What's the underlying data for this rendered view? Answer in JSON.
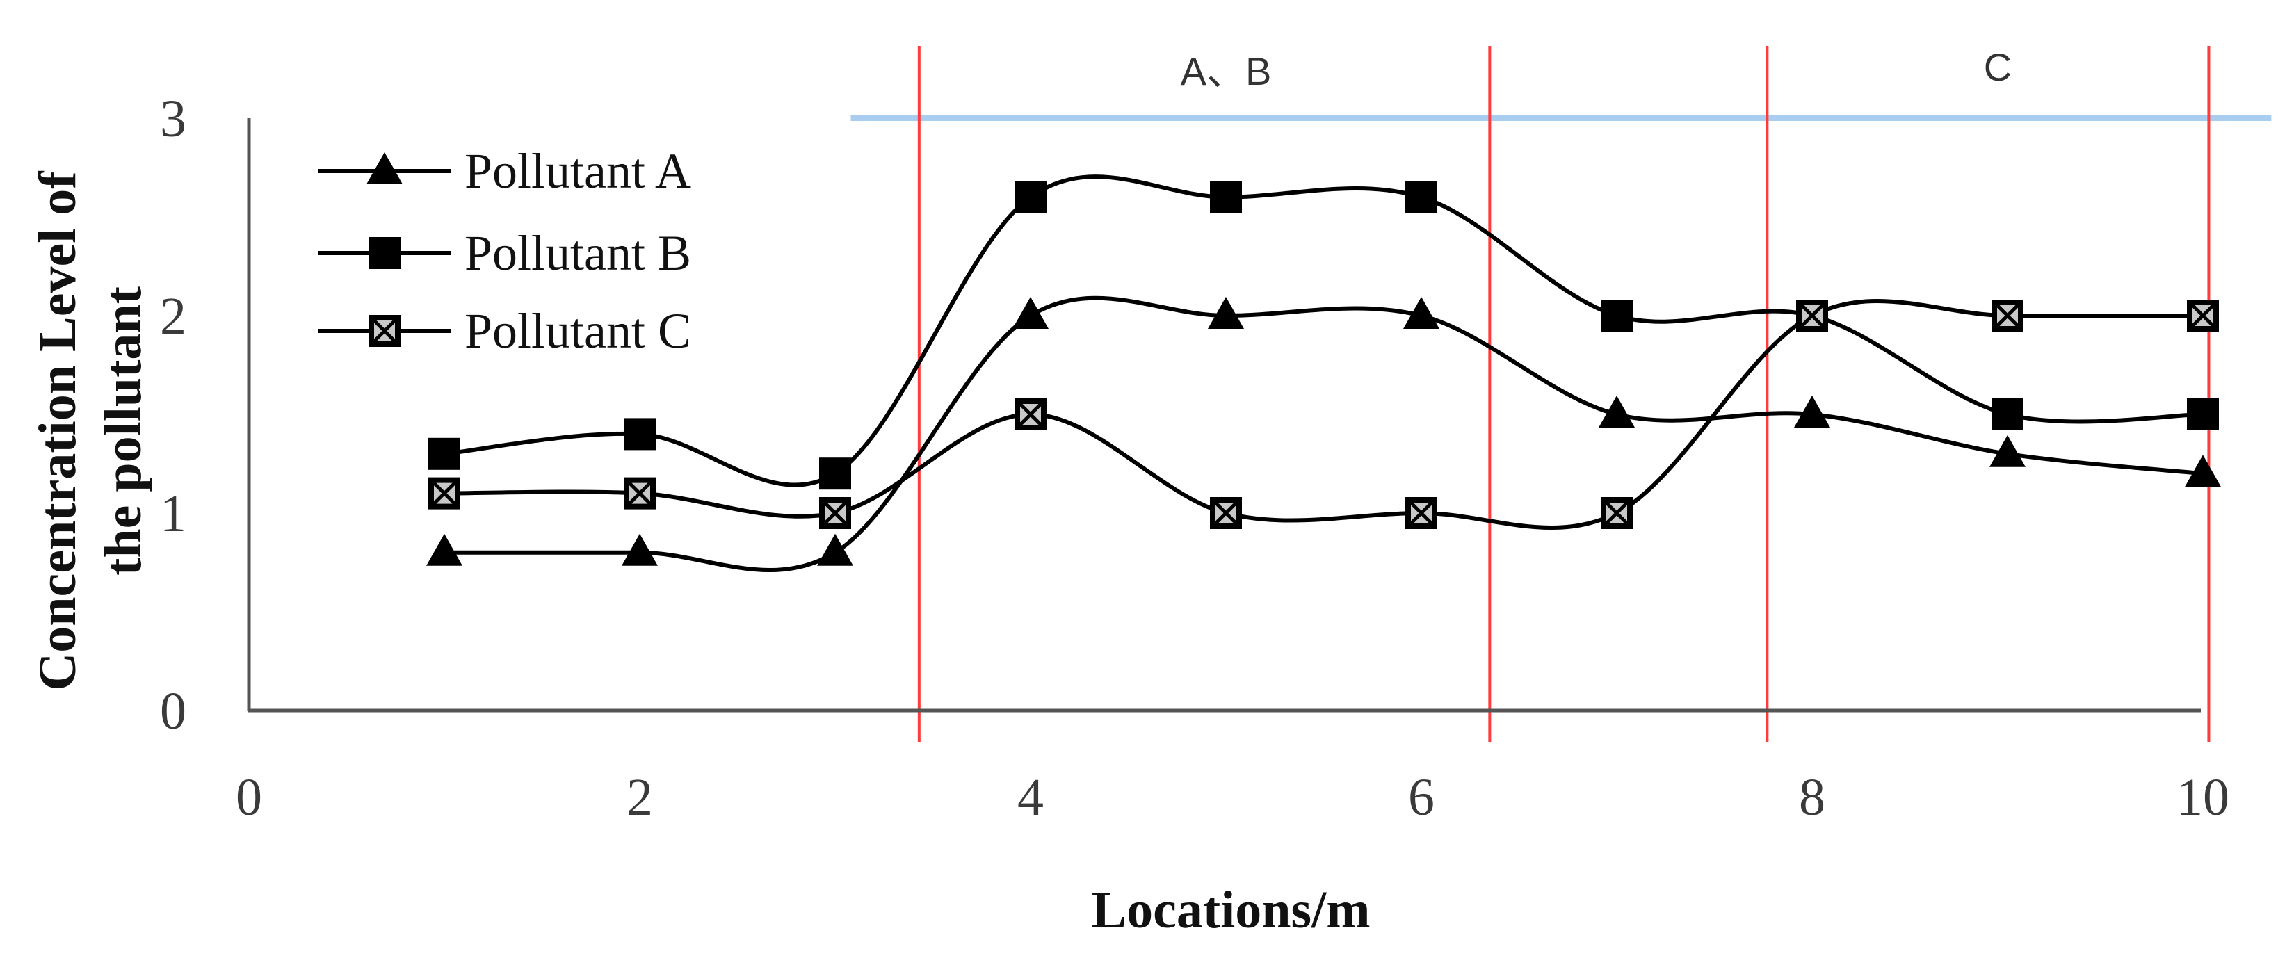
{
  "chart_data": {
    "type": "line",
    "title": "",
    "xlabel": "Locations/m",
    "ylabel_lines": [
      "Concentration Level of",
      "the pollutant"
    ],
    "xlim": [
      0,
      10
    ],
    "ylim": [
      0,
      3
    ],
    "x_ticks": [
      "0",
      "2",
      "4",
      "6",
      "8",
      "10"
    ],
    "y_ticks": [
      "0",
      "1",
      "2",
      "3"
    ],
    "legend_position": "top-left",
    "smooth": true,
    "series": [
      {
        "name": "Pollutant A",
        "marker": "triangle",
        "color": "#000000",
        "x": [
          1,
          2,
          3,
          4,
          5,
          6,
          7,
          8,
          9,
          10
        ],
        "y": [
          0.8,
          0.8,
          0.8,
          2.0,
          2.0,
          2.0,
          1.5,
          1.5,
          1.3,
          1.2
        ]
      },
      {
        "name": "Pollutant B",
        "marker": "square",
        "color": "#000000",
        "x": [
          1,
          2,
          3,
          4,
          5,
          6,
          7,
          8,
          9,
          10
        ],
        "y": [
          1.3,
          1.4,
          1.2,
          2.6,
          2.6,
          2.6,
          2.0,
          2.0,
          1.5,
          1.5
        ]
      },
      {
        "name": "Pollutant C",
        "marker": "crossed-square",
        "color": "#000000",
        "x": [
          1,
          2,
          3,
          4,
          5,
          6,
          7,
          8,
          9,
          10
        ],
        "y": [
          1.1,
          1.1,
          1.0,
          1.5,
          1.0,
          1.0,
          1.0,
          2.0,
          2.0,
          2.0
        ]
      }
    ],
    "vertical_lines": {
      "color": "#ff3b3b",
      "x": [
        3.43,
        6.35,
        7.77,
        10.03
      ]
    },
    "region_bar": {
      "color": "#a9cdf0",
      "x_start": 3.08,
      "x_end": 10.35,
      "y": 3.0
    },
    "region_labels": [
      {
        "text": "A、B",
        "x": 5.0
      },
      {
        "text": "C",
        "x": 8.95
      }
    ]
  }
}
